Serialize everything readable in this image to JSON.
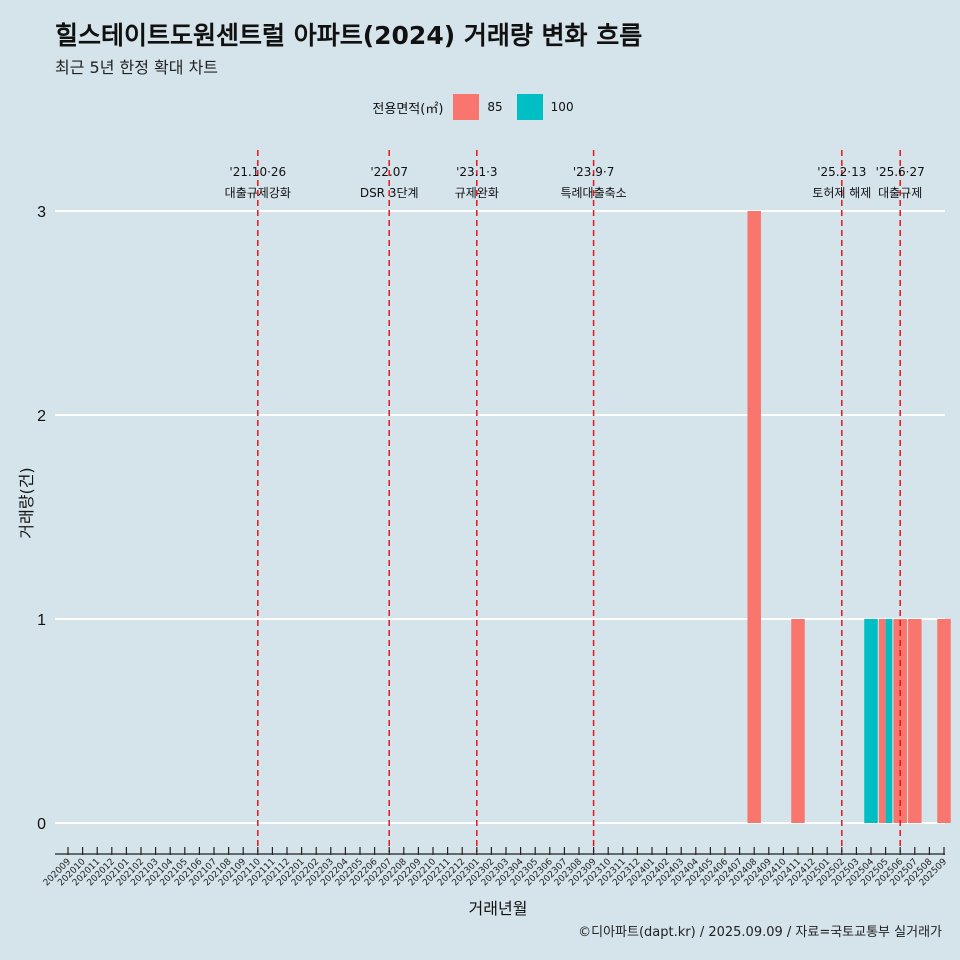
{
  "title": "힐스테이트도원센트럴 아파트(2024) 거래량 변화 흐름",
  "subtitle": "최근 5년 한정 확대 차트",
  "caption": "©디아파트(dapt.kr) / 2025.09.09 / 자료=국토교통부 실거래가",
  "legend": {
    "title": "전용면적(㎡)",
    "items": [
      {
        "label": "85",
        "color": "#f8766d"
      },
      {
        "label": "100",
        "color": "#00bfc4"
      }
    ]
  },
  "chart_data": {
    "type": "bar",
    "xlabel": "거래년월",
    "ylabel": "거래량(건)",
    "ylim": [
      0,
      3
    ],
    "yticks": [
      0,
      1,
      2,
      3
    ],
    "categories": [
      "202009",
      "202010",
      "202011",
      "202012",
      "202101",
      "202102",
      "202103",
      "202104",
      "202105",
      "202106",
      "202107",
      "202108",
      "202109",
      "202110",
      "202111",
      "202112",
      "202201",
      "202202",
      "202203",
      "202204",
      "202205",
      "202206",
      "202207",
      "202208",
      "202209",
      "202210",
      "202211",
      "202212",
      "202301",
      "202302",
      "202303",
      "202304",
      "202305",
      "202306",
      "202307",
      "202308",
      "202309",
      "202310",
      "202311",
      "202312",
      "202401",
      "202402",
      "202403",
      "202404",
      "202405",
      "202406",
      "202407",
      "202408",
      "202409",
      "202410",
      "202411",
      "202412",
      "202501",
      "202502",
      "202503",
      "202504",
      "202505",
      "202506",
      "202507",
      "202508",
      "202509"
    ],
    "bars": [
      {
        "x": "202408",
        "area": "85",
        "value": 3
      },
      {
        "x": "202411",
        "area": "85",
        "value": 1
      },
      {
        "x": "202504",
        "area": "100",
        "value": 1
      },
      {
        "x": "202505",
        "area": "85",
        "value": 1
      },
      {
        "x": "202505",
        "area": "100",
        "value": 1
      },
      {
        "x": "202506",
        "area": "85",
        "value": 1
      },
      {
        "x": "202507",
        "area": "85",
        "value": 1
      },
      {
        "x": "202509",
        "area": "85",
        "value": 1
      }
    ],
    "events": [
      {
        "date": "202110",
        "label_date": "'21.10·26",
        "label": "대출규제강화"
      },
      {
        "date": "202207",
        "label_date": "'22.07",
        "label": "DSR 3단계"
      },
      {
        "date": "202301",
        "label_date": "'23.1·3",
        "label": "규제완화"
      },
      {
        "date": "202309",
        "label_date": "'23.9·7",
        "label": "특례대출축소"
      },
      {
        "date": "202502",
        "label_date": "'25.2·13",
        "label": "토허제 해제"
      },
      {
        "date": "202506",
        "label_date": "'25.6·27",
        "label": "대출규제"
      }
    ]
  }
}
